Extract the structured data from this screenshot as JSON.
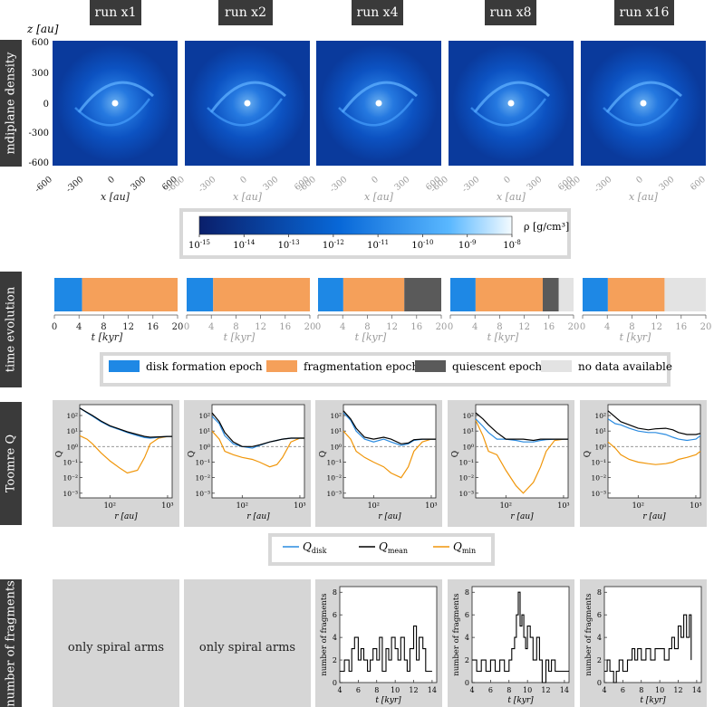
{
  "runs": [
    "run x1",
    "run x2",
    "run x4",
    "run x8",
    "run x16"
  ],
  "row_labels": {
    "density": "mdiplane density",
    "time": "time evolution",
    "toomre": "Toomre Q",
    "fragments": "number of fragments"
  },
  "density_maps": {
    "z_label": "z [au]",
    "x_label": "x [au]",
    "ticks": [
      "-600",
      "-300",
      "0",
      "300",
      "600"
    ],
    "yticks": [
      "600",
      "300",
      "0",
      "-300",
      "-600"
    ],
    "colorbar_label": "ρ [g/cm³]",
    "colorbar_ticks": [
      "10-15",
      "10-14",
      "10-13",
      "10-12",
      "10-11",
      "10-10",
      "10-9",
      "10-8"
    ],
    "colors": {
      "dark": "#0a2a7a",
      "mid": "#0a5ed4",
      "light": "#7cc4ff",
      "core": "#ffffff"
    }
  },
  "time_evolution": {
    "xlabel": "t [kyr]",
    "xticks": [
      "0",
      "4",
      "8",
      "12",
      "16",
      "20"
    ],
    "legend": [
      "disk formation epoch",
      "fragmentation epoch",
      "quiescent epoch",
      "no data available"
    ],
    "colors": {
      "disk": "#1e88e5",
      "frag": "#f5a05a",
      "quiet": "#5a5a5a",
      "nodata": "#e3e3e3"
    }
  },
  "toomre": {
    "ylabel": "Q",
    "xlabel": "r [au]",
    "yticks": [
      "10²",
      "10¹",
      "10⁰",
      "10⁻¹",
      "10⁻²",
      "10⁻³"
    ],
    "xticks": [
      "10²",
      "10³"
    ],
    "legend": [
      "Q_disk",
      "Q_mean",
      "Q_min"
    ],
    "legend_colors": [
      "#2a8be0",
      "#000000",
      "#f0960a"
    ]
  },
  "fragments": {
    "only_spiral": "only spiral arms",
    "ylabel": "number of fragments",
    "xlabel": "t [kyr]",
    "xticks": [
      "4",
      "6",
      "8",
      "10",
      "12",
      "14"
    ],
    "yticks": [
      "8",
      "6",
      "4",
      "2",
      "0"
    ]
  },
  "chart_data": [
    {
      "type": "bar",
      "title": "time evolution",
      "xlabel": "t [kyr]",
      "xlim": [
        0,
        20
      ],
      "series": [
        {
          "run": "run x1",
          "epochs": [
            {
              "epoch": "disk formation epoch",
              "start": 0,
              "end": 4.5
            },
            {
              "epoch": "fragmentation epoch",
              "start": 4.5,
              "end": 20
            }
          ]
        },
        {
          "run": "run x2",
          "epochs": [
            {
              "epoch": "disk formation epoch",
              "start": 0,
              "end": 4.3
            },
            {
              "epoch": "fragmentation epoch",
              "start": 4.3,
              "end": 20
            }
          ]
        },
        {
          "run": "run x4",
          "epochs": [
            {
              "epoch": "disk formation epoch",
              "start": 0,
              "end": 4.1
            },
            {
              "epoch": "fragmentation epoch",
              "start": 4.1,
              "end": 14
            },
            {
              "epoch": "quiescent epoch",
              "start": 14,
              "end": 20
            }
          ]
        },
        {
          "run": "run x8",
          "epochs": [
            {
              "epoch": "disk formation epoch",
              "start": 0,
              "end": 4.1
            },
            {
              "epoch": "fragmentation epoch",
              "start": 4.1,
              "end": 15
            },
            {
              "epoch": "quiescent epoch",
              "start": 15,
              "end": 17.6
            },
            {
              "epoch": "no data available",
              "start": 17.6,
              "end": 20
            }
          ]
        },
        {
          "run": "run x16",
          "epochs": [
            {
              "epoch": "disk formation epoch",
              "start": 0,
              "end": 4.1
            },
            {
              "epoch": "fragmentation epoch",
              "start": 4.1,
              "end": 13.3
            },
            {
              "epoch": "no data available",
              "start": 13.3,
              "end": 20
            }
          ]
        }
      ]
    },
    {
      "type": "line",
      "title": "Toomre Q",
      "xlabel": "r [au]",
      "ylabel": "Q",
      "xlim": [
        30,
        1200
      ],
      "ylim": [
        0.0005,
        500
      ],
      "log_x": true,
      "log_y": true,
      "r": [
        30,
        40,
        50,
        70,
        100,
        150,
        200,
        300,
        400,
        500,
        700,
        1000,
        1200
      ],
      "runs": [
        {
          "run": "run x1",
          "Q_disk": [
            300,
            150,
            90,
            40,
            20,
            12,
            8,
            5,
            3.8,
            3.5,
            4,
            4.5,
            4.5
          ],
          "Q_mean": [
            300,
            160,
            100,
            45,
            22,
            13,
            9,
            6,
            4.5,
            4,
            4.2,
            4.5,
            4.5
          ],
          "Q_min": [
            5,
            3,
            1.5,
            0.4,
            0.12,
            0.04,
            0.02,
            0.03,
            0.2,
            1.5,
            3.5,
            4.5,
            4.5
          ]
        },
        {
          "run": "run x2",
          "Q_disk": [
            90,
            30,
            5,
            1.5,
            1,
            0.8,
            1.2,
            2,
            2.5,
            3,
            3.5,
            3.5,
            3.5
          ],
          "Q_mean": [
            150,
            40,
            8,
            2,
            1,
            1,
            1.3,
            2,
            2.5,
            3,
            3.5,
            3.5,
            3.5
          ],
          "Q_min": [
            10,
            3,
            0.5,
            0.3,
            0.2,
            0.15,
            0.1,
            0.05,
            0.07,
            0.2,
            2,
            3.5,
            3.5
          ]
        },
        {
          "run": "run x4",
          "Q_disk": [
            150,
            50,
            10,
            3,
            2,
            3,
            2,
            1.2,
            1.5,
            2.5,
            3,
            3,
            3
          ],
          "Q_mean": [
            200,
            60,
            15,
            4,
            3,
            4,
            3,
            1.5,
            1.7,
            2.8,
            3,
            3,
            3
          ],
          "Q_min": [
            10,
            3,
            0.5,
            0.2,
            0.1,
            0.05,
            0.02,
            0.01,
            0.05,
            0.5,
            2,
            3,
            3
          ]
        },
        {
          "run": "run x8",
          "Q_disk": [
            60,
            20,
            8,
            3,
            3,
            2.5,
            2,
            2,
            2.5,
            2.8,
            3,
            3,
            3
          ],
          "Q_mean": [
            150,
            60,
            25,
            8,
            3,
            3,
            3,
            2.5,
            3,
            3,
            3,
            3,
            3
          ],
          "Q_min": [
            50,
            5,
            0.5,
            0.3,
            0.03,
            0.003,
            0.001,
            0.005,
            0.05,
            0.5,
            2.5,
            3,
            3
          ]
        },
        {
          "run": "run x16",
          "Q_disk": [
            60,
            30,
            25,
            15,
            10,
            8,
            8,
            6,
            4,
            3,
            2.5,
            3,
            5
          ],
          "Q_mean": [
            200,
            80,
            40,
            25,
            15,
            12,
            14,
            15,
            12,
            8,
            6,
            6,
            7
          ],
          "Q_min": [
            2,
            0.8,
            0.3,
            0.15,
            0.1,
            0.08,
            0.07,
            0.08,
            0.1,
            0.15,
            0.2,
            0.3,
            0.5
          ]
        }
      ]
    },
    {
      "type": "line",
      "title": "number of fragments",
      "xlabel": "t [kyr]",
      "ylabel": "number of fragments",
      "xlim": [
        4,
        14.5
      ],
      "ylim": [
        0,
        8.5
      ],
      "runs": [
        {
          "run": "run x4",
          "t": [
            4,
            4.5,
            5,
            5.3,
            5.6,
            6,
            6.3,
            6.6,
            7,
            7.3,
            7.6,
            8,
            8.3,
            8.6,
            9,
            9.3,
            9.6,
            10,
            10.3,
            10.6,
            11,
            11.3,
            11.6,
            12,
            12.3,
            12.6,
            13,
            13.3,
            13.6,
            14
          ],
          "n": [
            1,
            2,
            1,
            3,
            4,
            2,
            3,
            2,
            1,
            2,
            3,
            2,
            4,
            1,
            3,
            2,
            4,
            3,
            2,
            4,
            2,
            1,
            3,
            5,
            2,
            4,
            3,
            1,
            1,
            1
          ]
        },
        {
          "run": "run x8",
          "t": [
            4,
            4.5,
            5,
            5.5,
            6,
            6.5,
            7,
            7.5,
            8,
            8.3,
            8.6,
            8.8,
            9,
            9.2,
            9.4,
            9.6,
            9.8,
            10,
            10.3,
            10.6,
            11,
            11.3,
            11.6,
            12,
            12.3,
            12.6,
            13,
            13.5,
            14,
            14.5
          ],
          "n": [
            2,
            1,
            2,
            1,
            2,
            1,
            2,
            1,
            2,
            3,
            4,
            6,
            8,
            5,
            6,
            4,
            3,
            5,
            4,
            2,
            4,
            2,
            0,
            2,
            1,
            2,
            1,
            1,
            1,
            1
          ]
        },
        {
          "run": "run x16",
          "t": [
            4,
            4.3,
            4.6,
            5,
            5.3,
            5.6,
            6,
            6.5,
            7,
            7.3,
            7.6,
            8,
            8.5,
            9,
            9.5,
            10,
            10.5,
            11,
            11.3,
            11.6,
            12,
            12.3,
            12.6,
            12.9,
            13.2,
            13.4
          ],
          "n": [
            1,
            2,
            1,
            0,
            1,
            2,
            1,
            2,
            3,
            2,
            3,
            2,
            3,
            2,
            3,
            3,
            2,
            3,
            4,
            3,
            5,
            4,
            6,
            4,
            6,
            2
          ]
        }
      ]
    }
  ]
}
